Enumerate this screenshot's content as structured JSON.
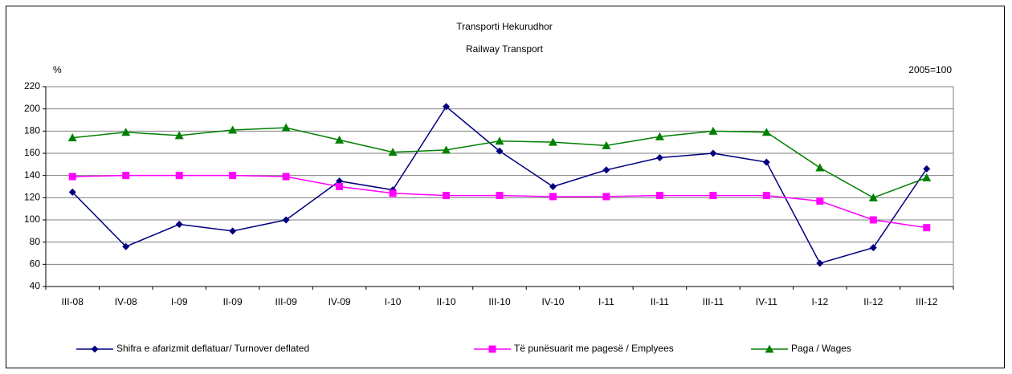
{
  "chart_data": {
    "type": "line",
    "title": "Transporti Hekurudhor",
    "subtitle": "Railway Transport",
    "y_label": "%",
    "annotation": "2005=100",
    "categories": [
      "III-08",
      "IV-08",
      "I-09",
      "II-09",
      "III-09",
      "IV-09",
      "I-10",
      "II-10",
      "III-10",
      "IV-10",
      "I-11",
      "II-11",
      "III-11",
      "IV-11",
      "I-12",
      "II-12",
      "III-12"
    ],
    "series": [
      {
        "name": "Shifra e afarizmit deflatuar/ Turnover deflated",
        "color": "#000080",
        "marker": "diamond",
        "values": [
          125,
          76,
          96,
          90,
          100,
          135,
          127,
          202,
          162,
          130,
          145,
          156,
          160,
          152,
          61,
          75,
          146
        ]
      },
      {
        "name": "Të punësuarit me pagesë / Emplyees",
        "color": "#ff00ff",
        "marker": "square",
        "values": [
          139,
          140,
          140,
          140,
          139,
          130,
          124,
          122,
          122,
          121,
          121,
          122,
          122,
          122,
          117,
          100,
          93
        ]
      },
      {
        "name": "Paga / Wages",
        "color": "#008000",
        "marker": "triangle",
        "values": [
          174,
          179,
          176,
          181,
          183,
          172,
          161,
          163,
          171,
          170,
          167,
          175,
          180,
          179,
          147,
          120,
          138
        ]
      }
    ],
    "ylim": [
      40,
      220
    ],
    "yticks": [
      40,
      60,
      80,
      100,
      120,
      140,
      160,
      180,
      200,
      220
    ],
    "grid": true,
    "legend": "bottom"
  }
}
